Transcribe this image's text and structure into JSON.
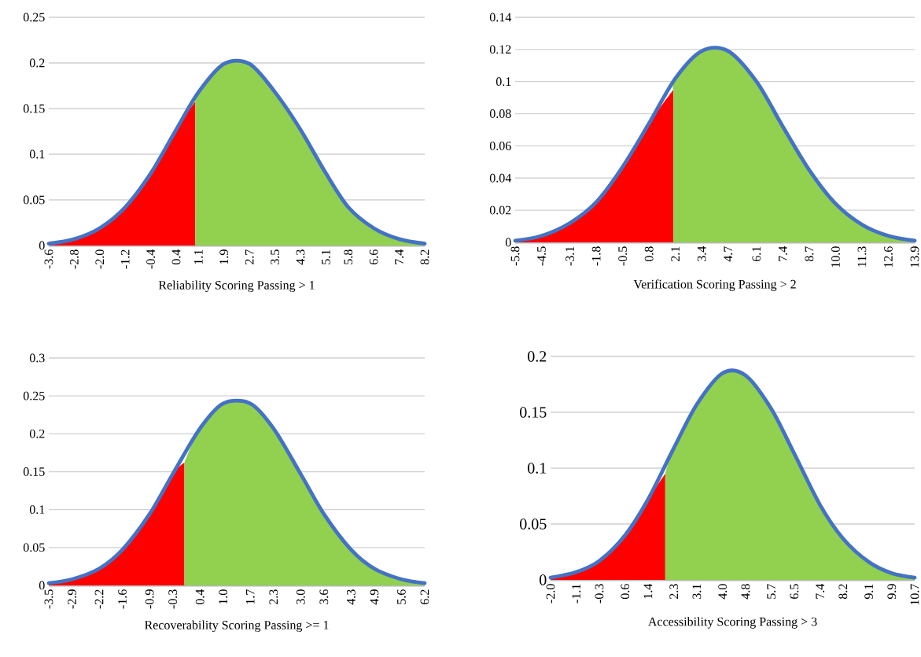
{
  "chart_data": [
    {
      "type": "line",
      "xlabel": "Reliability Scoring Passing > 1",
      "xlim": [
        -3.6,
        8.2
      ],
      "ylim": [
        0,
        0.25
      ],
      "yticks": [
        0,
        0.05,
        0.1,
        0.15,
        0.2,
        0.25
      ],
      "grid": "y",
      "xticks": [
        {
          "value": -3.6,
          "label": "-3.6"
        },
        {
          "value": -2.8,
          "label": "-2.8"
        },
        {
          "value": -2.0,
          "label": "-2.0"
        },
        {
          "value": -1.2,
          "label": "-1.2"
        },
        {
          "value": -0.4,
          "label": "-0.4"
        },
        {
          "value": 0.4,
          "label": "0.4"
        },
        {
          "value": 1.1,
          "label": "1.1"
        },
        {
          "value": 1.9,
          "label": "1.9"
        },
        {
          "value": 2.7,
          "label": "2.7"
        },
        {
          "value": 3.5,
          "label": "3.5"
        },
        {
          "value": 4.3,
          "label": "4.3"
        },
        {
          "value": 5.1,
          "label": "5.1"
        },
        {
          "value": 5.8,
          "label": "5.8"
        },
        {
          "value": 6.6,
          "label": "6.6"
        },
        {
          "value": 7.4,
          "label": "7.4"
        },
        {
          "value": 8.2,
          "label": "8.2"
        }
      ],
      "series": [
        {
          "type": "area",
          "color": "#ff0000",
          "x": [
            -3.6,
            -2.8,
            -2.0,
            -1.2,
            -0.4,
            0.4,
            1.0
          ],
          "values": [
            0.002,
            0.007,
            0.019,
            0.042,
            0.079,
            0.127,
            0.158
          ]
        },
        {
          "type": "area",
          "color": "#92d050",
          "x": [
            1.0,
            1.1,
            1.9,
            2.7,
            3.5,
            4.3,
            5.1,
            5.8,
            6.6,
            7.4,
            8.2
          ],
          "values": [
            0.158,
            0.168,
            0.199,
            0.199,
            0.168,
            0.127,
            0.079,
            0.042,
            0.019,
            0.007,
            0.002
          ]
        },
        {
          "color": "#4472c4",
          "x": [
            -3.6,
            -2.8,
            -2.0,
            -1.2,
            -0.4,
            0.4,
            1.1,
            1.9,
            2.7,
            3.5,
            4.3,
            5.1,
            5.8,
            6.6,
            7.4,
            8.2
          ],
          "values": [
            0.002,
            0.007,
            0.019,
            0.042,
            0.079,
            0.127,
            0.168,
            0.199,
            0.199,
            0.168,
            0.127,
            0.079,
            0.042,
            0.019,
            0.007,
            0.002
          ]
        }
      ]
    },
    {
      "type": "line",
      "xlabel": "Verification Scoring Passing > 2",
      "xlim": [
        -5.8,
        13.9
      ],
      "ylim": [
        0,
        0.14
      ],
      "yticks": [
        0,
        0.02,
        0.04,
        0.06,
        0.08,
        0.1,
        0.12,
        0.14
      ],
      "grid": "y",
      "xticks": [
        {
          "value": -5.8,
          "label": "-5.8"
        },
        {
          "value": -4.5,
          "label": "-4.5"
        },
        {
          "value": -3.1,
          "label": "-3.1"
        },
        {
          "value": -1.8,
          "label": "-1.8"
        },
        {
          "value": -0.5,
          "label": "-0.5"
        },
        {
          "value": 0.8,
          "label": "0.8"
        },
        {
          "value": 2.1,
          "label": "2.1"
        },
        {
          "value": 3.4,
          "label": "3.4"
        },
        {
          "value": 4.7,
          "label": "4.7"
        },
        {
          "value": 6.1,
          "label": "6.1"
        },
        {
          "value": 7.4,
          "label": "7.4"
        },
        {
          "value": 8.7,
          "label": "8.7"
        },
        {
          "value": 10.0,
          "label": "10.0"
        },
        {
          "value": 11.3,
          "label": "11.3"
        },
        {
          "value": 12.6,
          "label": "12.6"
        },
        {
          "value": 13.9,
          "label": "13.9"
        }
      ],
      "series": [
        {
          "type": "area",
          "color": "#ff0000",
          "x": [
            -5.8,
            -4.5,
            -3.1,
            -1.8,
            -0.5,
            0.8,
            2.0
          ],
          "values": [
            0.001,
            0.004,
            0.012,
            0.025,
            0.047,
            0.074,
            0.095
          ]
        },
        {
          "type": "area",
          "color": "#92d050",
          "x": [
            2.0,
            2.1,
            3.4,
            4.7,
            6.1,
            7.4,
            8.7,
            10.0,
            11.3,
            12.6,
            13.9
          ],
          "values": [
            0.095,
            0.102,
            0.119,
            0.119,
            0.1,
            0.072,
            0.045,
            0.024,
            0.011,
            0.004,
            0.001
          ]
        },
        {
          "color": "#4472c4",
          "x": [
            -5.8,
            -4.5,
            -3.1,
            -1.8,
            -0.5,
            0.8,
            2.1,
            3.4,
            4.7,
            6.1,
            7.4,
            8.7,
            10.0,
            11.3,
            12.6,
            13.9
          ],
          "values": [
            0.001,
            0.004,
            0.012,
            0.025,
            0.047,
            0.074,
            0.102,
            0.119,
            0.119,
            0.1,
            0.072,
            0.045,
            0.024,
            0.011,
            0.004,
            0.001
          ]
        }
      ]
    },
    {
      "type": "line",
      "xlabel": "Recoverability Scoring Passing >= 1",
      "xlim": [
        -3.5,
        6.2
      ],
      "ylim": [
        0,
        0.3
      ],
      "yticks": [
        0,
        0.05,
        0.1,
        0.15,
        0.2,
        0.25,
        0.3
      ],
      "grid": "y",
      "xticks": [
        {
          "value": -3.5,
          "label": "-3.5"
        },
        {
          "value": -2.9,
          "label": "-2.9"
        },
        {
          "value": -2.2,
          "label": "-2.2"
        },
        {
          "value": -1.6,
          "label": "-1.6"
        },
        {
          "value": -0.9,
          "label": "-0.9"
        },
        {
          "value": -0.3,
          "label": "-0.3"
        },
        {
          "value": 0.4,
          "label": "0.4"
        },
        {
          "value": 1.0,
          "label": "1.0"
        },
        {
          "value": 1.7,
          "label": "1.7"
        },
        {
          "value": 2.3,
          "label": "2.3"
        },
        {
          "value": 3.0,
          "label": "3.0"
        },
        {
          "value": 3.6,
          "label": "3.6"
        },
        {
          "value": 4.3,
          "label": "4.3"
        },
        {
          "value": 4.9,
          "label": "4.9"
        },
        {
          "value": 5.6,
          "label": "5.6"
        },
        {
          "value": 6.2,
          "label": "6.2"
        }
      ],
      "series": [
        {
          "type": "area",
          "color": "#ff0000",
          "x": [
            -3.5,
            -2.9,
            -2.2,
            -1.6,
            -0.9,
            -0.3,
            0.0
          ],
          "values": [
            0.003,
            0.008,
            0.022,
            0.047,
            0.094,
            0.147,
            0.162
          ]
        },
        {
          "type": "area",
          "color": "#92d050",
          "x": [
            0.0,
            0.4,
            1.0,
            1.7,
            2.3,
            3.0,
            3.6,
            4.3,
            4.9,
            5.6,
            6.2
          ],
          "values": [
            0.162,
            0.207,
            0.24,
            0.24,
            0.207,
            0.147,
            0.094,
            0.047,
            0.022,
            0.008,
            0.003
          ]
        },
        {
          "color": "#4472c4",
          "x": [
            -3.5,
            -2.9,
            -2.2,
            -1.6,
            -0.9,
            -0.3,
            0.4,
            1.0,
            1.7,
            2.3,
            3.0,
            3.6,
            4.3,
            4.9,
            5.6,
            6.2
          ],
          "values": [
            0.003,
            0.008,
            0.022,
            0.047,
            0.094,
            0.147,
            0.207,
            0.24,
            0.24,
            0.207,
            0.147,
            0.094,
            0.047,
            0.022,
            0.008,
            0.003
          ]
        }
      ]
    },
    {
      "type": "line",
      "xlabel": "Accessibility Scoring Passing > 3",
      "xlim": [
        -2.0,
        10.7
      ],
      "ylim": [
        0,
        0.2
      ],
      "yticks": [
        0,
        0.05,
        0.1,
        0.15,
        0.2
      ],
      "grid": "y",
      "xticks": [
        {
          "value": -2.0,
          "label": "-2.0"
        },
        {
          "value": -1.1,
          "label": "-1.1"
        },
        {
          "value": -0.3,
          "label": "-0.3"
        },
        {
          "value": 0.6,
          "label": "0.6"
        },
        {
          "value": 1.4,
          "label": "1.4"
        },
        {
          "value": 2.3,
          "label": "2.3"
        },
        {
          "value": 3.1,
          "label": "3.1"
        },
        {
          "value": 4.0,
          "label": "4.0"
        },
        {
          "value": 4.8,
          "label": "4.8"
        },
        {
          "value": 5.7,
          "label": "5.7"
        },
        {
          "value": 6.5,
          "label": "6.5"
        },
        {
          "value": 7.4,
          "label": "7.4"
        },
        {
          "value": 8.2,
          "label": "8.2"
        },
        {
          "value": 9.1,
          "label": "9.1"
        },
        {
          "value": 9.9,
          "label": "9.9"
        },
        {
          "value": 10.7,
          "label": "10.7"
        }
      ],
      "series": [
        {
          "type": "area",
          "color": "#ff0000",
          "x": [
            -2.0,
            -1.1,
            -0.3,
            0.6,
            1.4,
            2.0
          ],
          "values": [
            0.002,
            0.007,
            0.017,
            0.04,
            0.072,
            0.095
          ]
        },
        {
          "type": "area",
          "color": "#92d050",
          "x": [
            2.0,
            2.3,
            3.1,
            4.0,
            4.8,
            5.7,
            6.5,
            7.4,
            8.2,
            9.1,
            9.9,
            10.7
          ],
          "values": [
            0.095,
            0.118,
            0.157,
            0.185,
            0.183,
            0.153,
            0.113,
            0.067,
            0.037,
            0.016,
            0.006,
            0.002
          ]
        },
        {
          "color": "#4472c4",
          "x": [
            -2.0,
            -1.1,
            -0.3,
            0.6,
            1.4,
            2.3,
            3.1,
            4.0,
            4.8,
            5.7,
            6.5,
            7.4,
            8.2,
            9.1,
            9.9,
            10.7
          ],
          "values": [
            0.002,
            0.007,
            0.017,
            0.04,
            0.072,
            0.118,
            0.157,
            0.185,
            0.183,
            0.153,
            0.113,
            0.067,
            0.037,
            0.016,
            0.006,
            0.002
          ]
        }
      ]
    }
  ]
}
